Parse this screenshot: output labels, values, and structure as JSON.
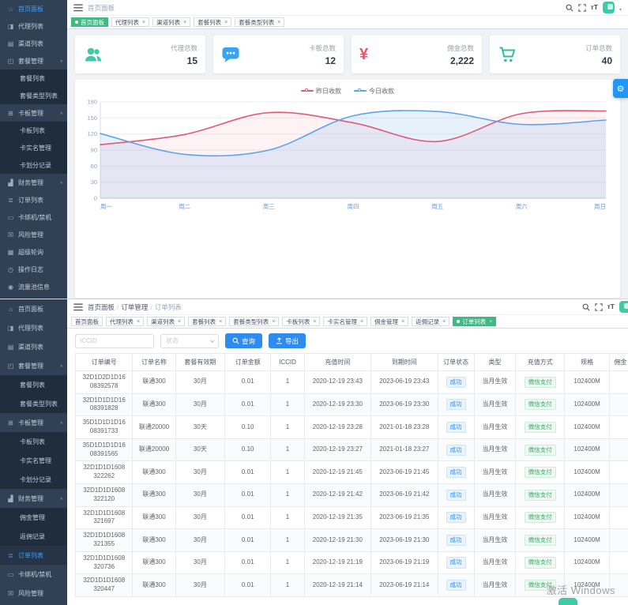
{
  "app": {
    "accent_blue": "#2d8cf0",
    "accent_green": "#42b983",
    "sidebar_bg": "#304156",
    "submenu_bg": "#1f2d3d"
  },
  "top": {
    "breadcrumb": "首页面板",
    "font_size_icon_label": "тT",
    "sidebar": [
      {
        "label": "首页面板",
        "icon": "home-icon",
        "active": true
      },
      {
        "label": "代理列表",
        "icon": "agents-icon"
      },
      {
        "label": "渠道列表",
        "icon": "channels-icon"
      },
      {
        "label": "套餐管理",
        "icon": "package-icon",
        "expand": "up"
      },
      {
        "label": "套餐列表",
        "sub": true
      },
      {
        "label": "套餐类型列表",
        "sub": true
      },
      {
        "label": "卡板管理",
        "icon": "cards-icon",
        "expand": "up"
      },
      {
        "label": "卡板列表",
        "sub": true
      },
      {
        "label": "卡实名管理",
        "sub": true
      },
      {
        "label": "卡划分记录",
        "sub": true
      },
      {
        "label": "财务管理",
        "icon": "finance-icon",
        "expand": "down"
      },
      {
        "label": "订单列表",
        "icon": "orders-icon"
      },
      {
        "label": "卡绑机/禁机",
        "icon": "device-icon"
      },
      {
        "label": "风险管理",
        "icon": "risk-icon"
      },
      {
        "label": "超级轮询",
        "icon": "super-icon"
      },
      {
        "label": "操作日志",
        "icon": "log-icon"
      },
      {
        "label": "流量池信息",
        "icon": "traffic-icon"
      }
    ],
    "tabs": [
      {
        "label": "首页面板",
        "active": true
      },
      {
        "label": "代理列表",
        "closable": true
      },
      {
        "label": "渠道列表",
        "closable": true
      },
      {
        "label": "套餐列表",
        "closable": true
      },
      {
        "label": "套餐类型列表",
        "closable": true
      }
    ],
    "stats": [
      {
        "label": "代理总数",
        "value": "15",
        "icon": "users-icon",
        "color": "#3ec9a7"
      },
      {
        "label": "卡板总数",
        "value": "12",
        "icon": "message-icon",
        "color": "#36a3f7"
      },
      {
        "label": "佣金总数",
        "value": "2,222",
        "icon": "yuan-icon",
        "color": "#f4516c"
      },
      {
        "label": "订单总数",
        "value": "40",
        "icon": "cart-icon",
        "color": "#2fbfa0"
      }
    ],
    "chart_data": {
      "type": "line",
      "title": "",
      "x": [
        "周一",
        "周二",
        "周三",
        "周四",
        "周五",
        "周六",
        "周日"
      ],
      "series": [
        {
          "name": "昨日收款",
          "color": "#e25a77",
          "values": [
            100,
            119,
            160,
            141,
            106,
            158,
            163
          ]
        },
        {
          "name": "今日收款",
          "color": "#5ea2e8",
          "values": [
            121,
            82,
            90,
            154,
            162,
            138,
            146
          ]
        }
      ],
      "ylim": [
        0,
        180
      ],
      "yticks": [
        0,
        30,
        60,
        90,
        120,
        150,
        180
      ],
      "grid": true,
      "legend_position": "top",
      "smooth": true
    }
  },
  "bottom": {
    "breadcrumb": [
      "首页面板",
      "订单管理",
      "订单列表"
    ],
    "font_size_icon_label": "тT",
    "sidebar": [
      {
        "label": "首页面板",
        "icon": "home-icon"
      },
      {
        "label": "代理列表",
        "icon": "agents-icon"
      },
      {
        "label": "渠道列表",
        "icon": "channels-icon"
      },
      {
        "label": "套餐管理",
        "icon": "package-icon",
        "expand": "up"
      },
      {
        "label": "套餐列表",
        "sub": true
      },
      {
        "label": "套餐类型列表",
        "sub": true
      },
      {
        "label": "卡板管理",
        "icon": "cards-icon",
        "expand": "up"
      },
      {
        "label": "卡板列表",
        "sub": true
      },
      {
        "label": "卡实名管理",
        "sub": true
      },
      {
        "label": "卡划分记录",
        "sub": true
      },
      {
        "label": "财务管理",
        "icon": "finance-icon",
        "expand": "up"
      },
      {
        "label": "佣金管理",
        "sub": true
      },
      {
        "label": "返佣记录",
        "sub": true
      },
      {
        "label": "订单列表",
        "icon": "orders-icon",
        "active": true
      },
      {
        "label": "卡绑机/禁机",
        "icon": "device-icon"
      },
      {
        "label": "风险管理",
        "icon": "risk-icon"
      }
    ],
    "tabs": [
      {
        "label": "首页面板"
      },
      {
        "label": "代理列表",
        "closable": true
      },
      {
        "label": "渠道列表",
        "closable": true
      },
      {
        "label": "套餐列表",
        "closable": true
      },
      {
        "label": "套餐类型列表",
        "closable": true
      },
      {
        "label": "卡板列表",
        "closable": true
      },
      {
        "label": "卡实名管理",
        "closable": true
      },
      {
        "label": "佣金管理",
        "closable": true
      },
      {
        "label": "返佣记录",
        "closable": true
      },
      {
        "label": "订单列表",
        "active": true,
        "closable": true
      }
    ],
    "toolbar": {
      "iccid_placeholder": "ICCID",
      "status_placeholder": "状态",
      "search_label": "查询",
      "export_label": "导出"
    },
    "table": {
      "columns": [
        "订单编号",
        "订单名称",
        "套餐有效期",
        "订单金额",
        "ICCID",
        "充值时间",
        "到期时间",
        "订单状态",
        "类型",
        "充值方式",
        "规格",
        "佣金"
      ],
      "rows": [
        [
          "32D1D2D1D16\n08392578",
          "联通300",
          "30月",
          "0.01",
          "1",
          "2020-12-19 23:43",
          "2023-06-19 23:43",
          "成功",
          "当月生效",
          "微信支付",
          "102400M",
          ""
        ],
        [
          "32D1D1D1D16\n08391828",
          "联通300",
          "30月",
          "0.01",
          "1",
          "2020-12-19 23:30",
          "2023-06-19 23:30",
          "成功",
          "当月生效",
          "微信支付",
          "102400M",
          ""
        ],
        [
          "35D1D1D1D16\n08391733",
          "联通20000",
          "30天",
          "0.10",
          "1",
          "2020-12-19 23:28",
          "2021-01-18 23:28",
          "成功",
          "当月生效",
          "微信支付",
          "102400M",
          ""
        ],
        [
          "35D1D1D1D16\n08391565",
          "联通20000",
          "30天",
          "0.10",
          "1",
          "2020-12-19 23:27",
          "2021-01-18 23:27",
          "成功",
          "当月生效",
          "微信支付",
          "102400M",
          ""
        ],
        [
          "32D1D1D1608\n322262",
          "联通300",
          "30月",
          "0.01",
          "1",
          "2020-12-19 21:45",
          "2023-06-19 21:45",
          "成功",
          "当月生效",
          "微信支付",
          "102400M",
          ""
        ],
        [
          "32D1D1D1608\n322120",
          "联通300",
          "30月",
          "0.01",
          "1",
          "2020-12-19 21:42",
          "2023-06-19 21:42",
          "成功",
          "当月生效",
          "微信支付",
          "102400M",
          ""
        ],
        [
          "32D1D1D1608\n321697",
          "联通300",
          "30月",
          "0.01",
          "1",
          "2020-12-19 21:35",
          "2023-06-19 21:35",
          "成功",
          "当月生效",
          "微信支付",
          "102400M",
          ""
        ],
        [
          "32D1D1D1608\n321355",
          "联通300",
          "30月",
          "0.01",
          "1",
          "2020-12-19 21:30",
          "2023-06-19 21:30",
          "成功",
          "当月生效",
          "微信支付",
          "102400M",
          ""
        ],
        [
          "32D1D1D1608\n320736",
          "联通300",
          "30月",
          "0.01",
          "1",
          "2020-12-19 21:19",
          "2023-06-19 21:19",
          "成功",
          "当月生效",
          "微信支付",
          "102400M",
          ""
        ],
        [
          "32D1D1D1608\n320447",
          "联通300",
          "30月",
          "0.01",
          "1",
          "2020-12-19 21:14",
          "2023-06-19 21:14",
          "成功",
          "当月生效",
          "微信支付",
          "102400M",
          ""
        ]
      ]
    },
    "watermark": "激活 Windows"
  }
}
